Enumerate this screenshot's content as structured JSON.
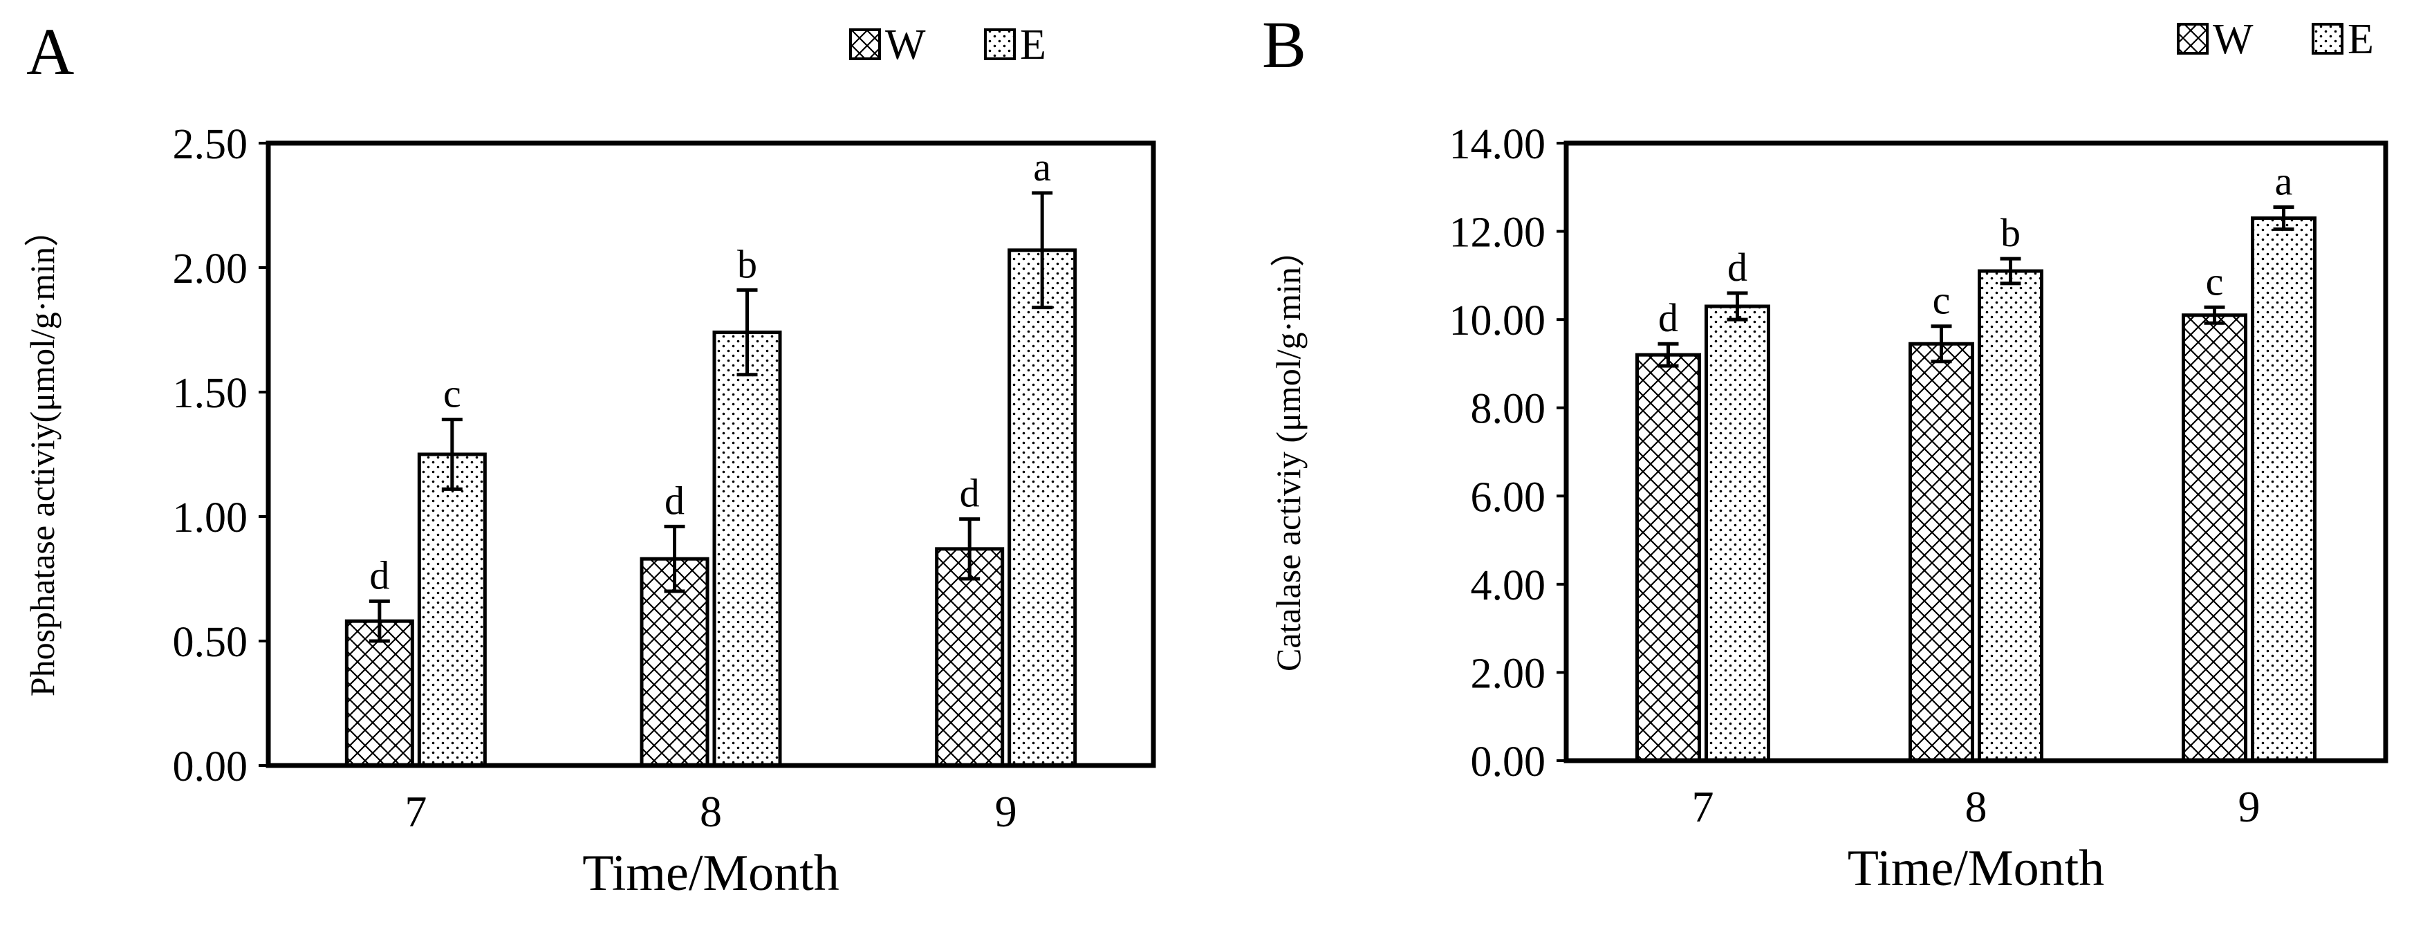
{
  "chart_data": [
    {
      "type": "bar",
      "panel_label": "A",
      "categories": [
        "7",
        "8",
        "9"
      ],
      "xlabel": "Time/Month",
      "ylabel": "Phosphatase activiy(μmol/g·min）",
      "ylim": [
        0,
        2.5
      ],
      "yticks": [
        "0.00",
        "0.50",
        "1.00",
        "1.50",
        "2.00",
        "2.50"
      ],
      "grid": false,
      "legend_position": "top-right",
      "series": [
        {
          "name": "W",
          "pattern": "crosshatch",
          "values": [
            0.58,
            0.83,
            0.87
          ],
          "errors": [
            0.08,
            0.13,
            0.12
          ],
          "letters": [
            "d",
            "d",
            "d"
          ]
        },
        {
          "name": "E",
          "pattern": "dots",
          "values": [
            1.25,
            1.74,
            2.07
          ],
          "errors": [
            0.14,
            0.17,
            0.23
          ],
          "letters": [
            "c",
            "b",
            "a"
          ]
        }
      ]
    },
    {
      "type": "bar",
      "panel_label": "B",
      "categories": [
        "7",
        "8",
        "9"
      ],
      "xlabel": "Time/Month",
      "ylabel": "Catalase activiy (μmol/g·min）",
      "ylim": [
        0,
        14
      ],
      "yticks": [
        "0.00",
        "2.00",
        "4.00",
        "6.00",
        "8.00",
        "10.00",
        "12.00",
        "14.00"
      ],
      "grid": false,
      "legend_position": "top-right",
      "series": [
        {
          "name": "W",
          "pattern": "crosshatch",
          "values": [
            9.2,
            9.45,
            10.1
          ],
          "errors": [
            0.25,
            0.4,
            0.18
          ],
          "letters": [
            "d",
            "c",
            "c"
          ]
        },
        {
          "name": "E",
          "pattern": "dots",
          "values": [
            10.3,
            11.1,
            12.3
          ],
          "errors": [
            0.3,
            0.28,
            0.25
          ],
          "letters": [
            "d",
            "b",
            "a"
          ]
        }
      ]
    }
  ]
}
